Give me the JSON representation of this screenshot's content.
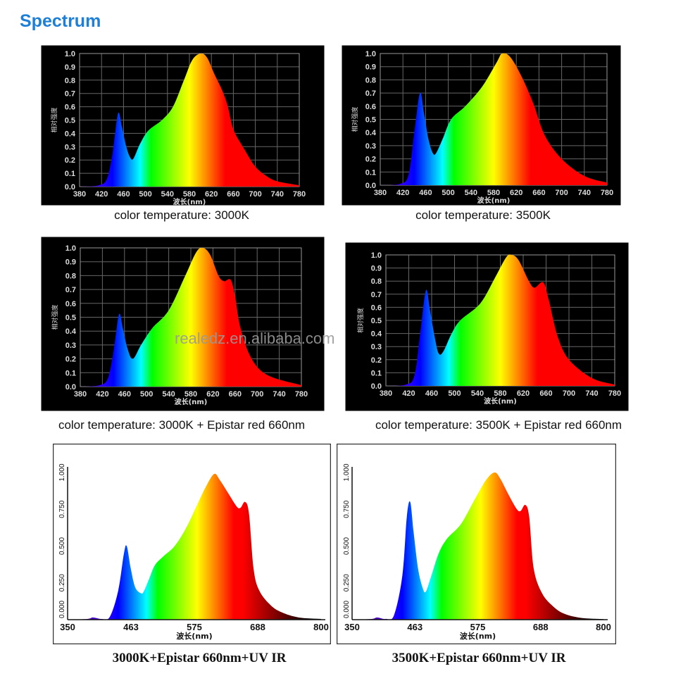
{
  "title": "Spectrum",
  "watermark": "realedz.en.alibaba.com",
  "colors": {
    "title": "#1e7fd6",
    "dark_bg": "#000000",
    "light_bg": "#ffffff"
  },
  "chart_data": [
    {
      "type": "area",
      "style": "dark",
      "caption": "color temperature: 3000K",
      "xlabel": "波长(nm)",
      "ylabel": "相对强度",
      "xlim": [
        380,
        780
      ],
      "ylim": [
        0,
        1.0
      ],
      "grid": true,
      "xticks": [
        "380",
        "420",
        "460",
        "500",
        "540",
        "580",
        "620",
        "660",
        "700",
        "740",
        "780"
      ],
      "yticks": [
        "0.0",
        "0.1",
        "0.2",
        "0.3",
        "0.4",
        "0.5",
        "0.6",
        "0.7",
        "0.8",
        "0.9",
        "1.0"
      ],
      "x": [
        380,
        415,
        430,
        440,
        450,
        457,
        465,
        472,
        478,
        490,
        505,
        530,
        550,
        570,
        585,
        600,
        612,
        625,
        640,
        650,
        660,
        680,
        700,
        720,
        740,
        780
      ],
      "y": [
        0,
        0.01,
        0.06,
        0.25,
        0.55,
        0.45,
        0.3,
        0.22,
        0.21,
        0.32,
        0.42,
        0.5,
        0.6,
        0.8,
        0.95,
        1.0,
        0.97,
        0.85,
        0.72,
        0.6,
        0.43,
        0.28,
        0.15,
        0.08,
        0.04,
        0.01
      ]
    },
    {
      "type": "area",
      "style": "dark",
      "caption": "color temperature: 3500K",
      "xlabel": "波长(nm)",
      "ylabel": "相对强度",
      "xlim": [
        380,
        780
      ],
      "ylim": [
        0,
        1.0
      ],
      "grid": true,
      "xticks": [
        "380",
        "420",
        "460",
        "500",
        "540",
        "580",
        "620",
        "660",
        "700",
        "740",
        "780"
      ],
      "yticks": [
        "0.0",
        "0.1",
        "0.2",
        "0.3",
        "0.4",
        "0.5",
        "0.6",
        "0.7",
        "0.8",
        "0.9",
        "1.0"
      ],
      "x": [
        380,
        415,
        430,
        440,
        450,
        457,
        465,
        472,
        478,
        490,
        505,
        530,
        560,
        585,
        595,
        610,
        630,
        650,
        670,
        700,
        740,
        780
      ],
      "y": [
        0,
        0.01,
        0.08,
        0.4,
        0.7,
        0.55,
        0.35,
        0.25,
        0.24,
        0.35,
        0.5,
        0.6,
        0.75,
        0.93,
        1.0,
        0.97,
        0.82,
        0.62,
        0.38,
        0.2,
        0.07,
        0.02
      ]
    },
    {
      "type": "area",
      "style": "dark",
      "caption": "color temperature: 3000K + Epistar red 660nm",
      "xlabel": "波长(nm)",
      "ylabel": "相对强度",
      "xlim": [
        380,
        780
      ],
      "ylim": [
        0,
        1.0
      ],
      "grid": true,
      "xticks": [
        "380",
        "420",
        "460",
        "500",
        "540",
        "580",
        "620",
        "660",
        "700",
        "740",
        "780"
      ],
      "yticks": [
        "0.0",
        "0.1",
        "0.2",
        "0.3",
        "0.4",
        "0.5",
        "0.6",
        "0.7",
        "0.8",
        "0.9",
        "1.0"
      ],
      "x": [
        380,
        415,
        430,
        440,
        450,
        457,
        465,
        475,
        490,
        510,
        540,
        570,
        590,
        602,
        615,
        630,
        640,
        652,
        660,
        670,
        690,
        720,
        780
      ],
      "y": [
        0,
        0.01,
        0.06,
        0.25,
        0.52,
        0.42,
        0.28,
        0.2,
        0.3,
        0.42,
        0.55,
        0.8,
        0.97,
        1.0,
        0.95,
        0.8,
        0.76,
        0.77,
        0.65,
        0.42,
        0.2,
        0.08,
        0.01
      ]
    },
    {
      "type": "area",
      "style": "dark",
      "caption": "color temperature: 3500K + Epistar red 660nm",
      "xlabel": "波长(nm)",
      "ylabel": "相对强度",
      "xlim": [
        380,
        780
      ],
      "ylim": [
        0,
        1.0
      ],
      "grid": true,
      "xticks": [
        "380",
        "420",
        "460",
        "500",
        "540",
        "580",
        "620",
        "660",
        "700",
        "740",
        "780"
      ],
      "yticks": [
        "0.0",
        "0.1",
        "0.2",
        "0.3",
        "0.4",
        "0.5",
        "0.6",
        "0.7",
        "0.8",
        "0.9",
        "1.0"
      ],
      "x": [
        380,
        415,
        430,
        440,
        450,
        457,
        465,
        472,
        480,
        495,
        510,
        545,
        570,
        590,
        600,
        612,
        630,
        640,
        655,
        665,
        680,
        700,
        740,
        780
      ],
      "y": [
        0,
        0.01,
        0.08,
        0.4,
        0.73,
        0.58,
        0.38,
        0.25,
        0.26,
        0.4,
        0.5,
        0.63,
        0.82,
        0.98,
        1.0,
        0.96,
        0.8,
        0.75,
        0.79,
        0.65,
        0.38,
        0.2,
        0.06,
        0.01
      ]
    },
    {
      "type": "area",
      "style": "light",
      "caption": "3000K+Epistar 660nm+UV IR",
      "xlabel": "波长(nm)",
      "ylabel": "",
      "xlim": [
        350,
        800
      ],
      "ylim": [
        0,
        1.0
      ],
      "grid": false,
      "xticks": [
        "350",
        "463",
        "575",
        "688",
        "800"
      ],
      "yticks": [
        "0.000",
        "0.250",
        "0.500",
        "0.750",
        "1.000"
      ],
      "x": [
        350,
        385,
        395,
        410,
        425,
        440,
        450,
        455,
        462,
        470,
        480,
        485,
        495,
        505,
        520,
        540,
        560,
        580,
        595,
        610,
        620,
        635,
        650,
        657,
        665,
        672,
        680,
        690,
        710,
        730,
        760,
        800
      ],
      "y": [
        0,
        0.005,
        0.015,
        0.005,
        0.02,
        0.2,
        0.45,
        0.5,
        0.35,
        0.22,
        0.18,
        0.19,
        0.28,
        0.37,
        0.43,
        0.5,
        0.62,
        0.78,
        0.9,
        0.99,
        0.95,
        0.86,
        0.77,
        0.76,
        0.8,
        0.72,
        0.35,
        0.2,
        0.1,
        0.05,
        0.015,
        0.005
      ]
    },
    {
      "type": "area",
      "style": "light",
      "caption": "3500K+Epistar 660nm+UV IR",
      "xlabel": "波长(nm)",
      "ylabel": "",
      "xlim": [
        350,
        800
      ],
      "ylim": [
        0,
        1.0
      ],
      "grid": false,
      "xticks": [
        "350",
        "463",
        "575",
        "688",
        "800"
      ],
      "yticks": [
        "0.000",
        "0.250",
        "0.500",
        "0.750",
        "1.000"
      ],
      "x": [
        350,
        385,
        395,
        410,
        425,
        440,
        448,
        454,
        460,
        468,
        476,
        482,
        492,
        505,
        520,
        545,
        570,
        590,
        605,
        615,
        630,
        645,
        652,
        660,
        667,
        675,
        690,
        710,
        730,
        760,
        800
      ],
      "y": [
        0,
        0.005,
        0.015,
        0.005,
        0.03,
        0.3,
        0.7,
        0.8,
        0.6,
        0.35,
        0.22,
        0.19,
        0.3,
        0.45,
        0.55,
        0.65,
        0.82,
        0.95,
        1.0,
        0.96,
        0.85,
        0.75,
        0.74,
        0.78,
        0.7,
        0.35,
        0.18,
        0.09,
        0.04,
        0.012,
        0.004
      ]
    }
  ]
}
